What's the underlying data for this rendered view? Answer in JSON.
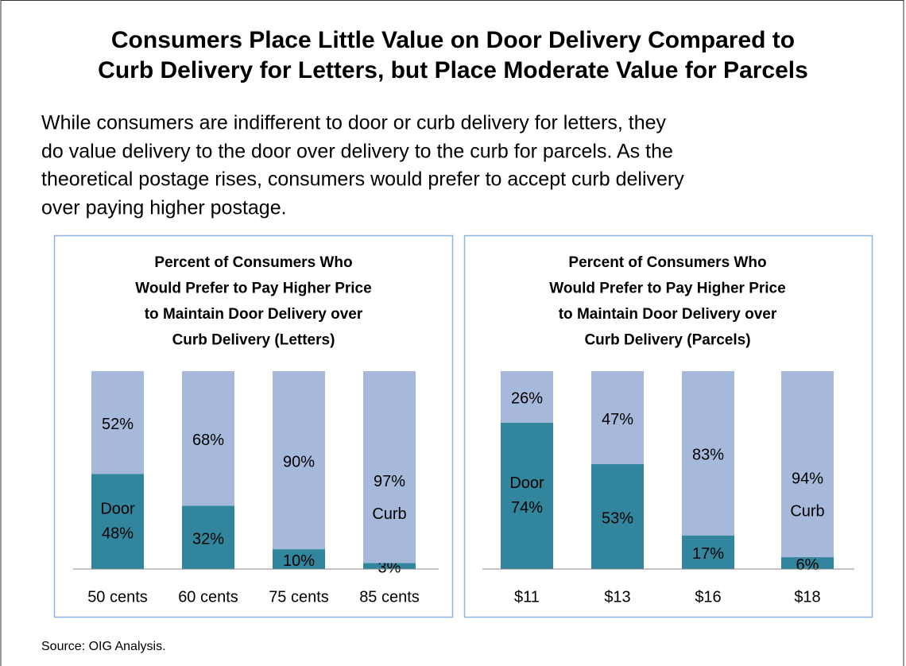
{
  "title": [
    "Consumers Place Little Value on Door Delivery Compared to",
    "Curb Delivery for Letters, but Place Moderate Value for Parcels"
  ],
  "subtitle": [
    "While consumers are indifferent to door or curb delivery for letters, they",
    "do value delivery to the door over delivery to the curb for parcels. As the",
    "theoretical postage rises, consumers would prefer to accept curb delivery",
    "over paying higher postage."
  ],
  "source": "Source: OIG Analysis.",
  "chart_data": [
    {
      "type": "bar",
      "stacked": true,
      "title": [
        "Percent of Consumers Who",
        "Would Prefer to Pay Higher Price",
        "to Maintain Door Delivery over",
        "Curb Delivery (Letters)"
      ],
      "categories": [
        "50 cents",
        "60 cents",
        "75 cents",
        "85 cents"
      ],
      "series": [
        {
          "name": "Door",
          "color": "#31859c",
          "values": [
            48,
            32,
            10,
            3
          ],
          "value_labels": [
            "48%",
            "32%",
            "10%",
            "3%"
          ]
        },
        {
          "name": "Curb",
          "color": "#a7b9db",
          "values": [
            52,
            68,
            90,
            97
          ],
          "value_labels": [
            "52%",
            "68%",
            "90%",
            "97%"
          ]
        }
      ]
    },
    {
      "type": "bar",
      "stacked": true,
      "title": [
        "Percent of Consumers Who",
        "Would Prefer to Pay Higher Price",
        "to Maintain Door Delivery over",
        "Curb Delivery (Parcels)"
      ],
      "categories": [
        "$11",
        "$13",
        "$16",
        "$18"
      ],
      "series": [
        {
          "name": "Door",
          "color": "#31859c",
          "values": [
            74,
            53,
            17,
            6
          ],
          "value_labels": [
            "74%",
            "53%",
            "17%",
            "6%"
          ]
        },
        {
          "name": "Curb",
          "color": "#a7b9db",
          "values": [
            26,
            47,
            83,
            94
          ],
          "value_labels": [
            "26%",
            "47%",
            "83%",
            "94%"
          ]
        }
      ]
    }
  ]
}
